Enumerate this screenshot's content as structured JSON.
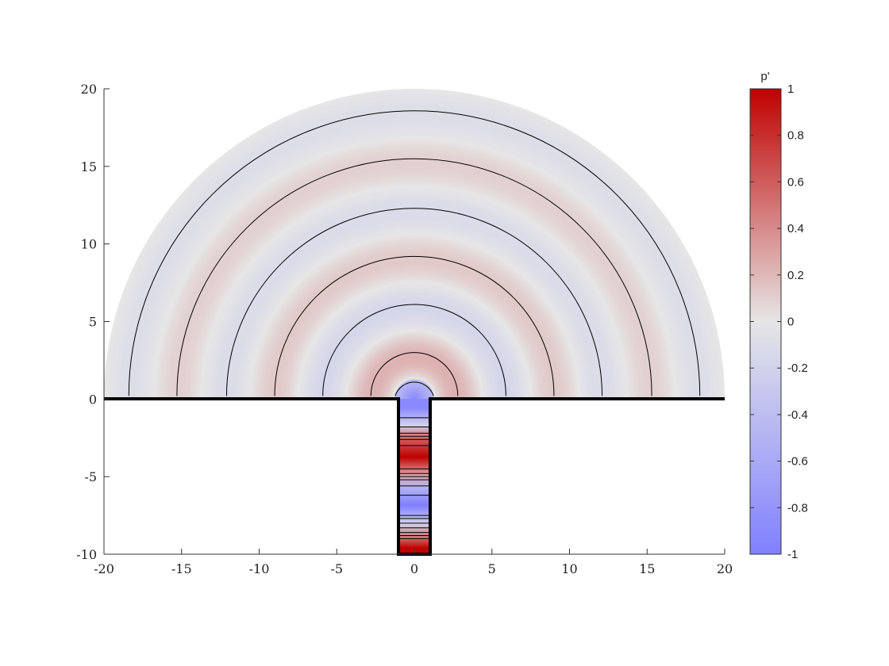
{
  "chart_data": {
    "type": "heatmap",
    "title": "",
    "xlabel": "",
    "ylabel": "",
    "xlim": [
      -20,
      20
    ],
    "ylim": [
      -10,
      20
    ],
    "x_ticks": [
      "-20",
      "-15",
      "-10",
      "-5",
      "0",
      "5",
      "10",
      "15",
      "20"
    ],
    "y_ticks": [
      "20",
      "15",
      "10",
      "5",
      "0",
      "-5",
      "-10"
    ],
    "domain": {
      "half_disk_radius": 20,
      "duct_x_range": [
        -1,
        1
      ],
      "duct_y_range": [
        -10,
        0
      ]
    },
    "field_variable": "p'",
    "contour_radii": [
      1.3,
      2.8,
      5.9,
      9.0,
      12.1,
      15.3,
      18.4
    ],
    "duct_contour_y": [
      -1.2,
      -1.8,
      -2.2,
      -2.4,
      -2.6,
      -3.0,
      -4.5,
      -4.8,
      -5.0,
      -5.2,
      -5.6,
      -6.2,
      -7.5,
      -7.7,
      -8.0,
      -8.3,
      -8.6,
      -8.8,
      -9.0
    ],
    "duct_bands": [
      {
        "y": [
          -1.2,
          0
        ],
        "value": -0.9
      },
      {
        "y": [
          -2.2,
          -1.2
        ],
        "value": -0.2
      },
      {
        "y": [
          -3.0,
          -2.2
        ],
        "value": 0.6
      },
      {
        "y": [
          -4.5,
          -3.0
        ],
        "value": 1.0
      },
      {
        "y": [
          -5.2,
          -4.5
        ],
        "value": 0.3
      },
      {
        "y": [
          -6.2,
          -5.2
        ],
        "value": -0.5
      },
      {
        "y": [
          -7.5,
          -6.2
        ],
        "value": -1.0
      },
      {
        "y": [
          -8.6,
          -7.5
        ],
        "value": -0.2
      },
      {
        "y": [
          -9.2,
          -8.6
        ],
        "value": 0.5
      },
      {
        "y": [
          -10,
          -9.2
        ],
        "value": 1.0
      }
    ],
    "colorbar": {
      "label": "p'",
      "range": [
        -1,
        1
      ],
      "ticks": [
        "1",
        "0.8",
        "0.6",
        "0.4",
        "0.2",
        "0",
        "-0.2",
        "-0.4",
        "-0.6",
        "-0.8",
        "-1"
      ],
      "colors": {
        "low": "#8080ff",
        "mid": "#e6e6e6",
        "high": "#c00000"
      }
    }
  }
}
